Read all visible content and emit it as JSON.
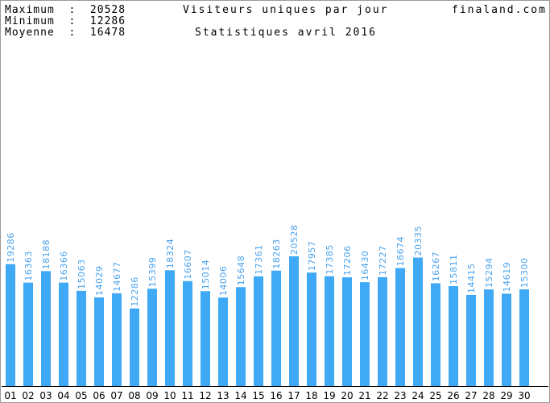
{
  "header": {
    "max_label": "Maximum  :  20528",
    "min_label": "Minimum  :  12286",
    "avg_label": "Moyenne  :  16478",
    "title": "Visiteurs uniques par jour",
    "site": "finaland.com",
    "subtitle": "Statistiques avril 2016"
  },
  "colors": {
    "bar": "#3fa9f5",
    "label": "#4aa3ee",
    "axis": "#000000"
  },
  "chart_data": {
    "type": "bar",
    "title": "Visiteurs uniques par jour",
    "subtitle": "Statistiques avril 2016",
    "categories": [
      "01",
      "02",
      "03",
      "04",
      "05",
      "06",
      "07",
      "08",
      "09",
      "10",
      "11",
      "12",
      "13",
      "14",
      "15",
      "16",
      "17",
      "18",
      "19",
      "20",
      "21",
      "22",
      "23",
      "24",
      "25",
      "26",
      "27",
      "28",
      "29",
      "30"
    ],
    "values": [
      19286,
      16363,
      18188,
      16366,
      15063,
      14029,
      14677,
      12286,
      15399,
      18324,
      16607,
      15014,
      14006,
      15648,
      17361,
      18263,
      20528,
      17957,
      17385,
      17206,
      16430,
      17227,
      18674,
      20335,
      16267,
      15811,
      14415,
      15294,
      14619,
      15300
    ],
    "ylim": [
      0,
      20528
    ],
    "grid": false,
    "legend": "none"
  }
}
